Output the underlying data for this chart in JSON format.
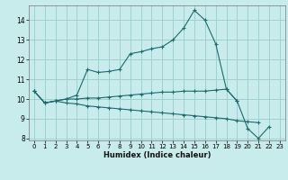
{
  "xlabel": "Humidex (Indice chaleur)",
  "bg_color": "#c8ecec",
  "grid_color": "#a0d0d0",
  "line_color": "#1a6b6b",
  "xlim": [
    -0.5,
    23.5
  ],
  "ylim": [
    7.9,
    14.75
  ],
  "yticks": [
    8,
    9,
    10,
    11,
    12,
    13,
    14
  ],
  "xticks": [
    0,
    1,
    2,
    3,
    4,
    5,
    6,
    7,
    8,
    9,
    10,
    11,
    12,
    13,
    14,
    15,
    16,
    17,
    18,
    19,
    20,
    21,
    22,
    23
  ],
  "curves": [
    {
      "x": [
        0,
        1,
        2,
        3,
        4,
        5,
        6,
        7,
        8,
        9,
        10,
        11,
        12,
        13,
        14,
        15,
        16,
        17,
        18,
        19,
        20,
        21,
        22
      ],
      "y": [
        10.4,
        9.8,
        9.9,
        10.0,
        10.2,
        11.5,
        11.35,
        11.4,
        11.5,
        12.3,
        12.4,
        12.55,
        12.65,
        13.0,
        13.6,
        14.5,
        14.0,
        12.8,
        10.5,
        9.9,
        8.5,
        8.0,
        8.6
      ]
    },
    {
      "x": [
        0,
        1,
        2,
        3,
        4,
        5,
        6,
        7,
        8,
        9,
        10,
        11,
        12,
        13,
        14,
        15,
        16,
        17,
        18,
        19
      ],
      "y": [
        10.4,
        9.8,
        9.9,
        10.0,
        10.0,
        10.05,
        10.05,
        10.1,
        10.15,
        10.2,
        10.25,
        10.3,
        10.35,
        10.35,
        10.4,
        10.4,
        10.4,
        10.45,
        10.5,
        9.9
      ]
    },
    {
      "x": [
        0,
        1,
        2,
        3,
        4,
        5,
        6,
        7,
        8,
        9,
        10,
        11,
        12,
        13,
        14,
        15,
        16,
        17,
        18,
        19,
        20,
        21
      ],
      "y": [
        10.4,
        9.8,
        9.9,
        9.8,
        9.75,
        9.65,
        9.6,
        9.55,
        9.5,
        9.45,
        9.4,
        9.35,
        9.3,
        9.25,
        9.2,
        9.15,
        9.1,
        9.05,
        9.0,
        8.9,
        8.85,
        8.8
      ]
    }
  ]
}
